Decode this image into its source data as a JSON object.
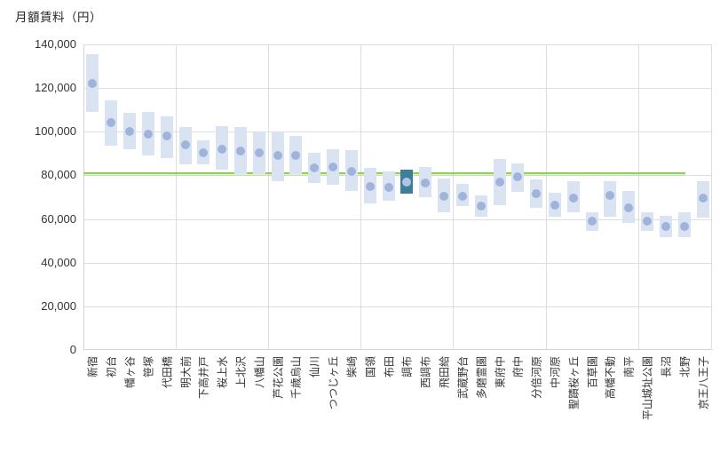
{
  "title": "月額賃料（円）",
  "colors": {
    "bar": "#d9e3f1",
    "dot": "#a0b4db",
    "highlight_bar": "#3d7e9b",
    "highlight_dot": "#b0c3e2",
    "reference_line": "#92d050",
    "gridline": "#dedede",
    "axis_text": "#333333"
  },
  "chart_data": {
    "type": "bar",
    "subtype": "floating-range-bars-with-median-dots",
    "title": "月額賃料（円）",
    "ylabel": "月額賃料（円）",
    "xlabel": "",
    "ylim": [
      0,
      140000
    ],
    "ytick_interval": 20000,
    "ytick_labels": [
      "0",
      "20,000",
      "40,000",
      "60,000",
      "80,000",
      "100,000",
      "120,000",
      "140,000"
    ],
    "grid": "on",
    "legend": "none",
    "vertical_grid_every_n_categories": 5,
    "reference_line_value": 81000,
    "highlighted_category": "調布",
    "highlight_index": 17,
    "categories": [
      "新宿",
      "初台",
      "幡ヶ谷",
      "笹塚",
      "代田橋",
      "明大前",
      "下高井戸",
      "桜上水",
      "上北沢",
      "八幡山",
      "芦花公園",
      "千歳烏山",
      "仙川",
      "つつじヶ丘",
      "柴崎",
      "国領",
      "布田",
      "調布",
      "西調布",
      "飛田給",
      "武蔵野台",
      "多磨霊園",
      "東府中",
      "府中",
      "分倍河原",
      "中河原",
      "聖蹟桜ヶ丘",
      "百草園",
      "高幡不動",
      "南平",
      "平山城址公園",
      "長沼",
      "北野",
      "京王八王子"
    ],
    "series": [
      {
        "name": "range_low",
        "values": [
          109000,
          93500,
          92000,
          89000,
          88000,
          85000,
          85000,
          82500,
          80500,
          80500,
          77500,
          80500,
          76500,
          75500,
          73000,
          67000,
          68500,
          71500,
          70000,
          63000,
          66000,
          61000,
          66500,
          72500,
          65000,
          61000,
          63000,
          54500,
          61000,
          58000,
          54500,
          51500,
          51500,
          60500
        ]
      },
      {
        "name": "range_high",
        "values": [
          135500,
          114500,
          108500,
          109000,
          107000,
          102000,
          96000,
          102500,
          102000,
          100000,
          100000,
          98000,
          90500,
          92000,
          91500,
          83500,
          82000,
          82500,
          84000,
          78500,
          76000,
          71000,
          87500,
          85500,
          78000,
          72000,
          77500,
          63000,
          77500,
          73000,
          63000,
          61500,
          63000,
          77500
        ]
      },
      {
        "name": "point",
        "values": [
          122000,
          104000,
          100000,
          99000,
          98000,
          94000,
          90500,
          92000,
          91000,
          90500,
          89000,
          89000,
          83500,
          84000,
          82000,
          75000,
          74500,
          77000,
          76500,
          70500,
          70500,
          66000,
          77000,
          79500,
          71500,
          66500,
          69500,
          59000,
          71000,
          65000,
          59000,
          56500,
          56500,
          69500
        ]
      }
    ]
  }
}
